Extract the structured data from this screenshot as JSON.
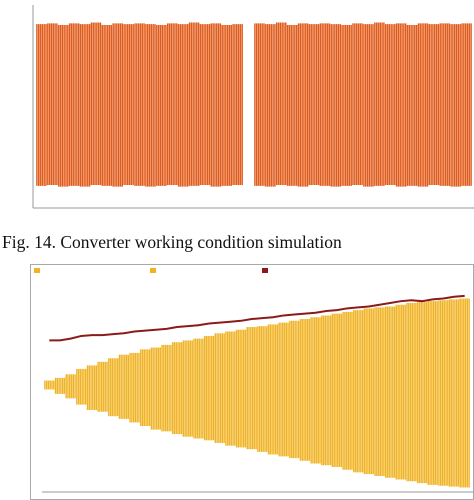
{
  "caption": "Fig. 14. Converter working condition simulation",
  "chart_data": [
    {
      "type": "oscillation",
      "ylim": [
        -1.2,
        1.2
      ],
      "series": [
        {
          "color": "#e05a1a",
          "upper": [
            0.97,
            0.98,
            0.96,
            0.98,
            0.97,
            0.99,
            0.96,
            0.98,
            0.97,
            0.98,
            0.97,
            0.96,
            0.98,
            0.97,
            0.99,
            0.97,
            0.98,
            0.96,
            0.97,
            null,
            0.98,
            0.97,
            0.99,
            0.96,
            0.98,
            0.97,
            0.98,
            0.97,
            0.96,
            0.98,
            0.97,
            0.99,
            0.97,
            0.98,
            0.96,
            0.98,
            0.97,
            0.98,
            0.97,
            0.98
          ],
          "lower": [
            -0.97,
            -0.96,
            -0.98,
            -0.97,
            -0.98,
            -0.96,
            -0.97,
            -0.98,
            -0.96,
            -0.97,
            -0.98,
            -0.97,
            -0.96,
            -0.98,
            -0.97,
            -0.96,
            -0.98,
            -0.97,
            -0.96,
            null,
            -0.97,
            -0.98,
            -0.96,
            -0.97,
            -0.98,
            -0.96,
            -0.97,
            -0.98,
            -0.97,
            -0.96,
            -0.98,
            -0.97,
            -0.96,
            -0.98,
            -0.97,
            -0.98,
            -0.96,
            -0.97,
            -0.98,
            -0.97
          ]
        }
      ]
    },
    {
      "type": "oscillation",
      "ylim": [
        -1.2,
        1.2
      ],
      "series": [
        {
          "color": "#f0b323",
          "upper": [
            0.05,
            0.08,
            0.12,
            0.18,
            0.22,
            0.26,
            0.3,
            0.34,
            0.36,
            0.4,
            0.42,
            0.45,
            0.48,
            0.5,
            0.52,
            0.55,
            0.58,
            0.6,
            0.62,
            0.65,
            0.66,
            0.68,
            0.7,
            0.72,
            0.74,
            0.76,
            0.78,
            0.8,
            0.82,
            0.84,
            0.86,
            0.87,
            0.88,
            0.9,
            0.92,
            0.93,
            0.94,
            0.95,
            0.96,
            0.97
          ],
          "lower": [
            -0.05,
            -0.1,
            -0.15,
            -0.22,
            -0.28,
            -0.3,
            -0.35,
            -0.38,
            -0.42,
            -0.46,
            -0.5,
            -0.52,
            -0.55,
            -0.58,
            -0.6,
            -0.62,
            -0.65,
            -0.68,
            -0.7,
            -0.72,
            -0.75,
            -0.78,
            -0.8,
            -0.82,
            -0.85,
            -0.88,
            -0.9,
            -0.92,
            -0.95,
            -0.98,
            -1.0,
            -1.02,
            -1.04,
            -1.06,
            -1.08,
            -1.1,
            -1.12,
            -1.13,
            -1.14,
            -1.15
          ]
        },
        {
          "color": "#8b1a1a",
          "values": [
            0.5,
            0.5,
            0.52,
            0.55,
            0.56,
            0.56,
            0.57,
            0.58,
            0.6,
            0.61,
            0.62,
            0.63,
            0.65,
            0.66,
            0.67,
            0.69,
            0.7,
            0.71,
            0.72,
            0.74,
            0.75,
            0.76,
            0.78,
            0.79,
            0.8,
            0.81,
            0.83,
            0.84,
            0.86,
            0.87,
            0.88,
            0.9,
            0.92,
            0.94,
            0.95,
            0.94,
            0.96,
            0.97,
            0.99,
            1.0
          ]
        }
      ]
    }
  ]
}
